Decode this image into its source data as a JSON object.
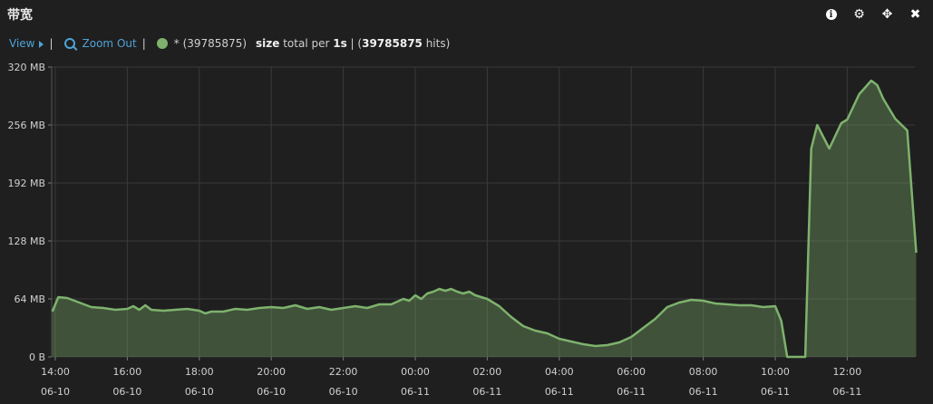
{
  "panel": {
    "title": "带宽"
  },
  "toolbar": {
    "info_icon": "info-icon",
    "settings_icon": "gear-icon",
    "move_icon": "move-icon",
    "close_icon": "close-icon"
  },
  "legend": {
    "view_label": "View",
    "zoom_out_label": "Zoom Out",
    "series_prefix": "* (39785875)",
    "metric_field": "size",
    "metric_middle": " total per ",
    "interval": "1s",
    "hits_open": " | (",
    "hits_count": "39785875",
    "hits_close": " hits)",
    "series_color": "#7eb26d"
  },
  "chart_data": {
    "type": "area",
    "xlabel": "",
    "ylabel": "",
    "y_unit": "MB",
    "ylim": [
      0,
      320
    ],
    "yticks": [
      {
        "value": 0,
        "label": "0 B"
      },
      {
        "value": 64,
        "label": "64 MB"
      },
      {
        "value": 128,
        "label": "128 MB"
      },
      {
        "value": 192,
        "label": "192 MB"
      },
      {
        "value": 256,
        "label": "256 MB"
      },
      {
        "value": 320,
        "label": "320 MB"
      }
    ],
    "xlim": [
      "06-10 14:00",
      "06-11 13:55"
    ],
    "xticks": [
      {
        "time": "14:00",
        "date": "06-10"
      },
      {
        "time": "16:00",
        "date": "06-10"
      },
      {
        "time": "18:00",
        "date": "06-10"
      },
      {
        "time": "20:00",
        "date": "06-10"
      },
      {
        "time": "22:00",
        "date": "06-10"
      },
      {
        "time": "00:00",
        "date": "06-11"
      },
      {
        "time": "02:00",
        "date": "06-11"
      },
      {
        "time": "04:00",
        "date": "06-11"
      },
      {
        "time": "06:00",
        "date": "06-11"
      },
      {
        "time": "08:00",
        "date": "06-11"
      },
      {
        "time": "10:00",
        "date": "06-11"
      },
      {
        "time": "12:00",
        "date": "06-11"
      }
    ],
    "grid": true,
    "series": [
      {
        "color": "#7eb26d",
        "points": [
          [
            "06-10 13:55",
            50
          ],
          [
            "06-10 14:05",
            66
          ],
          [
            "06-10 14:20",
            65
          ],
          [
            "06-10 14:40",
            60
          ],
          [
            "06-10 15:00",
            55
          ],
          [
            "06-10 15:20",
            54
          ],
          [
            "06-10 15:40",
            52
          ],
          [
            "06-10 16:00",
            53
          ],
          [
            "06-10 16:10",
            56
          ],
          [
            "06-10 16:20",
            52
          ],
          [
            "06-10 16:30",
            57
          ],
          [
            "06-10 16:40",
            52
          ],
          [
            "06-10 17:00",
            51
          ],
          [
            "06-10 17:20",
            52
          ],
          [
            "06-10 17:40",
            53
          ],
          [
            "06-10 18:00",
            51
          ],
          [
            "06-10 18:10",
            48
          ],
          [
            "06-10 18:20",
            50
          ],
          [
            "06-10 18:40",
            50
          ],
          [
            "06-10 19:00",
            53
          ],
          [
            "06-10 19:20",
            52
          ],
          [
            "06-10 19:40",
            54
          ],
          [
            "06-10 20:00",
            55
          ],
          [
            "06-10 20:20",
            54
          ],
          [
            "06-10 20:40",
            57
          ],
          [
            "06-10 21:00",
            53
          ],
          [
            "06-10 21:20",
            55
          ],
          [
            "06-10 21:40",
            52
          ],
          [
            "06-10 22:00",
            54
          ],
          [
            "06-10 22:20",
            56
          ],
          [
            "06-10 22:40",
            54
          ],
          [
            "06-10 23:00",
            58
          ],
          [
            "06-10 23:20",
            58
          ],
          [
            "06-10 23:40",
            64
          ],
          [
            "06-10 23:50",
            62
          ],
          [
            "06-11 00:00",
            68
          ],
          [
            "06-11 00:10",
            64
          ],
          [
            "06-11 00:20",
            70
          ],
          [
            "06-11 00:30",
            72
          ],
          [
            "06-11 00:40",
            75
          ],
          [
            "06-11 00:50",
            73
          ],
          [
            "06-11 01:00",
            75
          ],
          [
            "06-11 01:10",
            72
          ],
          [
            "06-11 01:20",
            70
          ],
          [
            "06-11 01:30",
            72
          ],
          [
            "06-11 01:40",
            68
          ],
          [
            "06-11 02:00",
            64
          ],
          [
            "06-11 02:20",
            56
          ],
          [
            "06-11 02:40",
            44
          ],
          [
            "06-11 03:00",
            34
          ],
          [
            "06-11 03:20",
            29
          ],
          [
            "06-11 03:40",
            26
          ],
          [
            "06-11 04:00",
            20
          ],
          [
            "06-11 04:20",
            17
          ],
          [
            "06-11 04:40",
            14
          ],
          [
            "06-11 05:00",
            12
          ],
          [
            "06-11 05:20",
            13
          ],
          [
            "06-11 05:40",
            16
          ],
          [
            "06-11 06:00",
            22
          ],
          [
            "06-11 06:20",
            32
          ],
          [
            "06-11 06:40",
            42
          ],
          [
            "06-11 07:00",
            55
          ],
          [
            "06-11 07:20",
            60
          ],
          [
            "06-11 07:40",
            63
          ],
          [
            "06-11 08:00",
            62
          ],
          [
            "06-11 08:20",
            59
          ],
          [
            "06-11 08:40",
            58
          ],
          [
            "06-11 09:00",
            57
          ],
          [
            "06-11 09:20",
            57
          ],
          [
            "06-11 09:40",
            55
          ],
          [
            "06-11 10:00",
            56
          ],
          [
            "06-11 10:10",
            40
          ],
          [
            "06-11 10:20",
            0
          ],
          [
            "06-11 10:50",
            0
          ],
          [
            "06-11 11:00",
            230
          ],
          [
            "06-11 11:10",
            256
          ],
          [
            "06-11 11:30",
            230
          ],
          [
            "06-11 11:50",
            258
          ],
          [
            "06-11 12:00",
            262
          ],
          [
            "06-11 12:20",
            290
          ],
          [
            "06-11 12:40",
            305
          ],
          [
            "06-11 12:50",
            300
          ],
          [
            "06-11 13:00",
            285
          ],
          [
            "06-11 13:20",
            263
          ],
          [
            "06-11 13:40",
            250
          ],
          [
            "06-11 13:55",
            115
          ]
        ]
      }
    ]
  }
}
